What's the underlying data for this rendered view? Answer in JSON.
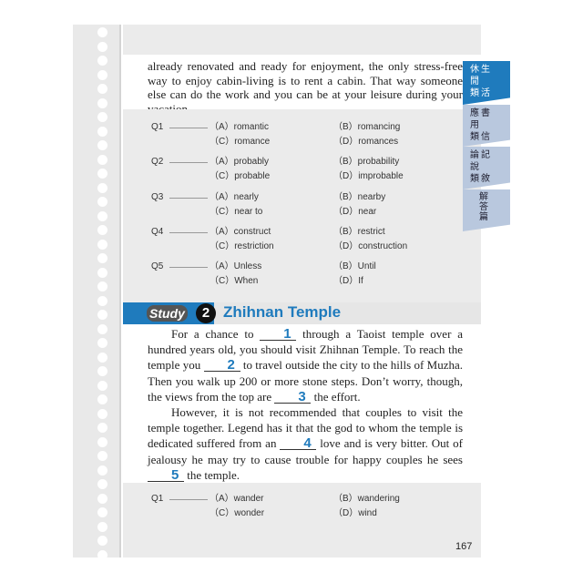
{
  "intro_text": "already renovated and ready for enjoyment, the only stress-free way to enjoy cabin-living is to rent a cabin. That way someone else can do the work and you can be at your leisure during your vacation.",
  "tabs": [
    {
      "lines": [
        "休生",
        "閒",
        "類活"
      ],
      "active": true
    },
    {
      "lines": [
        "應書",
        "用",
        "類信"
      ],
      "active": false
    },
    {
      "lines": [
        "論記",
        "說",
        "類敘"
      ],
      "active": false
    },
    {
      "lines": [
        "解",
        "答",
        "篇"
      ],
      "active": false
    }
  ],
  "questions1": [
    {
      "num": "Q1",
      "a": "（A）romantic",
      "b": "（B）romancing",
      "c": "（C）romance",
      "d": "（D）romances"
    },
    {
      "num": "Q2",
      "a": "（A）probably",
      "b": "（B）probability",
      "c": "（C）probable",
      "d": "（D）improbable"
    },
    {
      "num": "Q3",
      "a": "（A）nearly",
      "b": "（B）nearby",
      "c": "（C）near to",
      "d": "（D）near"
    },
    {
      "num": "Q4",
      "a": "（A）construct",
      "b": "（B）restrict",
      "c": "（C）restriction",
      "d": "（D）construction"
    },
    {
      "num": "Q5",
      "a": "（A）Unless",
      "b": "（B）Until",
      "c": "（C）When",
      "d": "（D）If"
    }
  ],
  "study": {
    "word": "Study",
    "number": "2",
    "title": "Zhihnan Temple"
  },
  "passage": {
    "p1a": "For a chance to ",
    "b1": "1",
    "p1b": " through a Taoist temple over a hundred years old, you should visit Zhihnan Temple. To reach the temple you ",
    "b2": "2",
    "p1c": " to travel outside the city to the hills of Muzha. Then you walk up 200 or more stone steps. Don’t worry, though, the views from the top are ",
    "b3": "3",
    "p1d": " the effort.",
    "p2a": "However, it is not recommended that couples to visit the temple together. Legend has it that the god to whom the temple is dedicated suffered from an ",
    "b4": "4",
    "p2b": " love and is very bitter. Out of jealousy he may try to cause trouble for happy couples he sees ",
    "b5": "5",
    "p2c": " the temple."
  },
  "questions2": [
    {
      "num": "Q1",
      "a": "（A）wander",
      "b": "（B）wandering",
      "c": "（C）wonder",
      "d": "（D）wind"
    }
  ],
  "page_number": "167",
  "colors": {
    "accent": "#1f7bbd",
    "tab_inactive": "#b9c8de",
    "panel": "#ebebeb"
  }
}
